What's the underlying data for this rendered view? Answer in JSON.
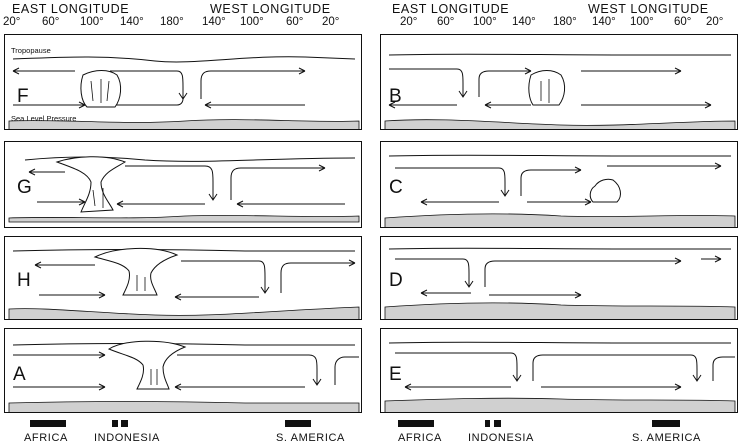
{
  "header": {
    "left": {
      "east": "EAST LONGITUDE",
      "west": "WEST LONGITUDE"
    },
    "right": {
      "east": "EAST LONGITUDE",
      "west": "WEST LONGITUDE"
    },
    "degrees": [
      "20°",
      "60°",
      "100°",
      "140°",
      "180°",
      "140°",
      "100°",
      "60°",
      "20°"
    ]
  },
  "panels": {
    "left": [
      "F",
      "G",
      "H",
      "A"
    ],
    "right": [
      "B",
      "C",
      "D",
      "E"
    ]
  },
  "annotations": {
    "tropopause": "Tropopause",
    "sea_level_pressure": "Sea Level Pressure"
  },
  "land": {
    "africa": "AFRICA",
    "indonesia": "INDONESIA",
    "south_america": "S. AMERICA"
  }
}
